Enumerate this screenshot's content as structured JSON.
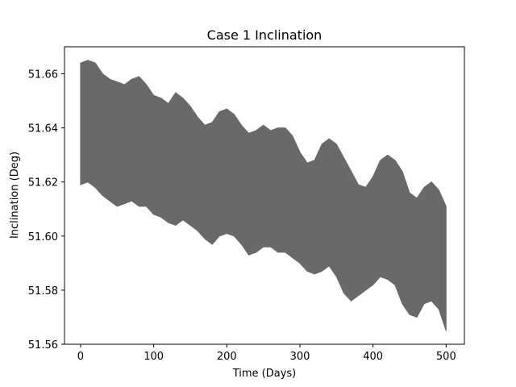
{
  "chart_data": {
    "type": "area",
    "title": "Case 1 Inclination",
    "xlabel": "Time (Days)",
    "ylabel": "Inclination (Deg)",
    "xlim": [
      -22,
      525
    ],
    "ylim": [
      51.56,
      51.67
    ],
    "xticks": [
      0,
      100,
      200,
      300,
      400,
      500
    ],
    "xtick_labels": [
      "0",
      "100",
      "200",
      "300",
      "400",
      "500"
    ],
    "yticks": [
      51.56,
      51.58,
      51.6,
      51.62,
      51.64,
      51.66
    ],
    "ytick_labels": [
      "51.56",
      "51.58",
      "51.60",
      "51.62",
      "51.64",
      "51.66"
    ],
    "grid": false,
    "fill_color": "#696969",
    "series": [
      {
        "x": [
          0,
          10,
          20,
          30,
          40,
          50,
          60,
          70,
          80,
          90,
          100,
          110,
          120,
          130,
          140,
          150,
          160,
          170,
          180,
          190,
          200,
          210,
          220,
          230,
          240,
          250,
          260,
          270,
          280,
          290,
          300,
          310,
          320,
          330,
          340,
          350,
          360,
          370,
          380,
          390,
          400,
          410,
          420,
          430,
          440,
          450,
          460,
          470,
          480,
          490,
          500
        ],
        "upper": [
          51.664,
          51.665,
          51.664,
          51.66,
          51.658,
          51.657,
          51.656,
          51.658,
          51.659,
          51.656,
          51.652,
          51.651,
          51.649,
          51.653,
          51.651,
          51.648,
          51.644,
          51.641,
          51.642,
          51.646,
          51.647,
          51.645,
          51.641,
          51.638,
          51.639,
          51.641,
          51.639,
          51.64,
          51.64,
          51.637,
          51.631,
          51.627,
          51.628,
          51.634,
          51.636,
          51.634,
          51.629,
          51.624,
          51.619,
          51.618,
          51.622,
          51.628,
          51.63,
          51.628,
          51.624,
          51.616,
          51.614,
          51.618,
          51.62,
          51.617,
          51.611
        ],
        "lower": [
          51.619,
          51.62,
          51.618,
          51.615,
          51.613,
          51.611,
          51.612,
          51.613,
          51.611,
          51.611,
          51.608,
          51.607,
          51.605,
          51.604,
          51.606,
          51.604,
          51.602,
          51.599,
          51.597,
          51.6,
          51.601,
          51.6,
          51.597,
          51.593,
          51.594,
          51.596,
          51.596,
          51.594,
          51.594,
          51.592,
          51.59,
          51.587,
          51.586,
          51.587,
          51.589,
          51.585,
          51.579,
          51.576,
          51.578,
          51.58,
          51.582,
          51.585,
          51.584,
          51.582,
          51.575,
          51.571,
          51.57,
          51.575,
          51.576,
          51.573,
          51.565
        ]
      }
    ]
  }
}
